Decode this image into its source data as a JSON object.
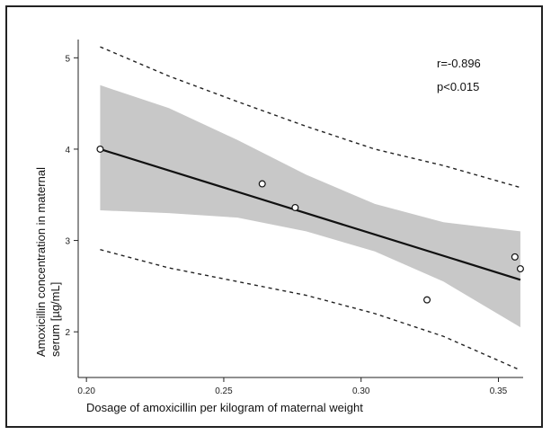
{
  "chart_data": {
    "type": "scatter",
    "xlabel": "Dosage of amoxicillin per kilogram of maternal weight",
    "ylabel_line1": "Amoxicillin concentration in maternal",
    "ylabel_line2": "serum [µg/mL]",
    "xlim": [
      0.197,
      0.359
    ],
    "ylim": [
      1.5,
      5.2
    ],
    "x_ticks": [
      0.2,
      0.25,
      0.3,
      0.35
    ],
    "x_tick_labels": [
      "0.20",
      "0.25",
      "0.30",
      "0.35"
    ],
    "y_ticks": [
      2,
      3,
      4,
      5
    ],
    "y_tick_labels": [
      "2",
      "3",
      "4",
      "5"
    ],
    "grid": false,
    "points": [
      {
        "x": 0.205,
        "y": 4.0
      },
      {
        "x": 0.264,
        "y": 3.62
      },
      {
        "x": 0.276,
        "y": 3.36
      },
      {
        "x": 0.324,
        "y": 2.35
      },
      {
        "x": 0.356,
        "y": 2.82
      },
      {
        "x": 0.358,
        "y": 2.69
      }
    ],
    "regression_line": {
      "x": [
        0.205,
        0.358
      ],
      "y": [
        4.0,
        2.57
      ]
    },
    "confidence_band": {
      "x": [
        0.205,
        0.23,
        0.255,
        0.28,
        0.305,
        0.33,
        0.358
      ],
      "lower": [
        3.33,
        3.3,
        3.25,
        3.1,
        2.88,
        2.55,
        2.05
      ],
      "upper": [
        4.7,
        4.45,
        4.1,
        3.72,
        3.4,
        3.2,
        3.1
      ]
    },
    "prediction_band": {
      "x": [
        0.205,
        0.23,
        0.255,
        0.28,
        0.305,
        0.33,
        0.358
      ],
      "lower": [
        2.9,
        2.7,
        2.55,
        2.4,
        2.2,
        1.95,
        1.58
      ],
      "upper": [
        5.12,
        4.8,
        4.52,
        4.25,
        4.0,
        3.82,
        3.58
      ]
    },
    "annotations": [
      "r=-0.896",
      "p<0.015"
    ]
  }
}
